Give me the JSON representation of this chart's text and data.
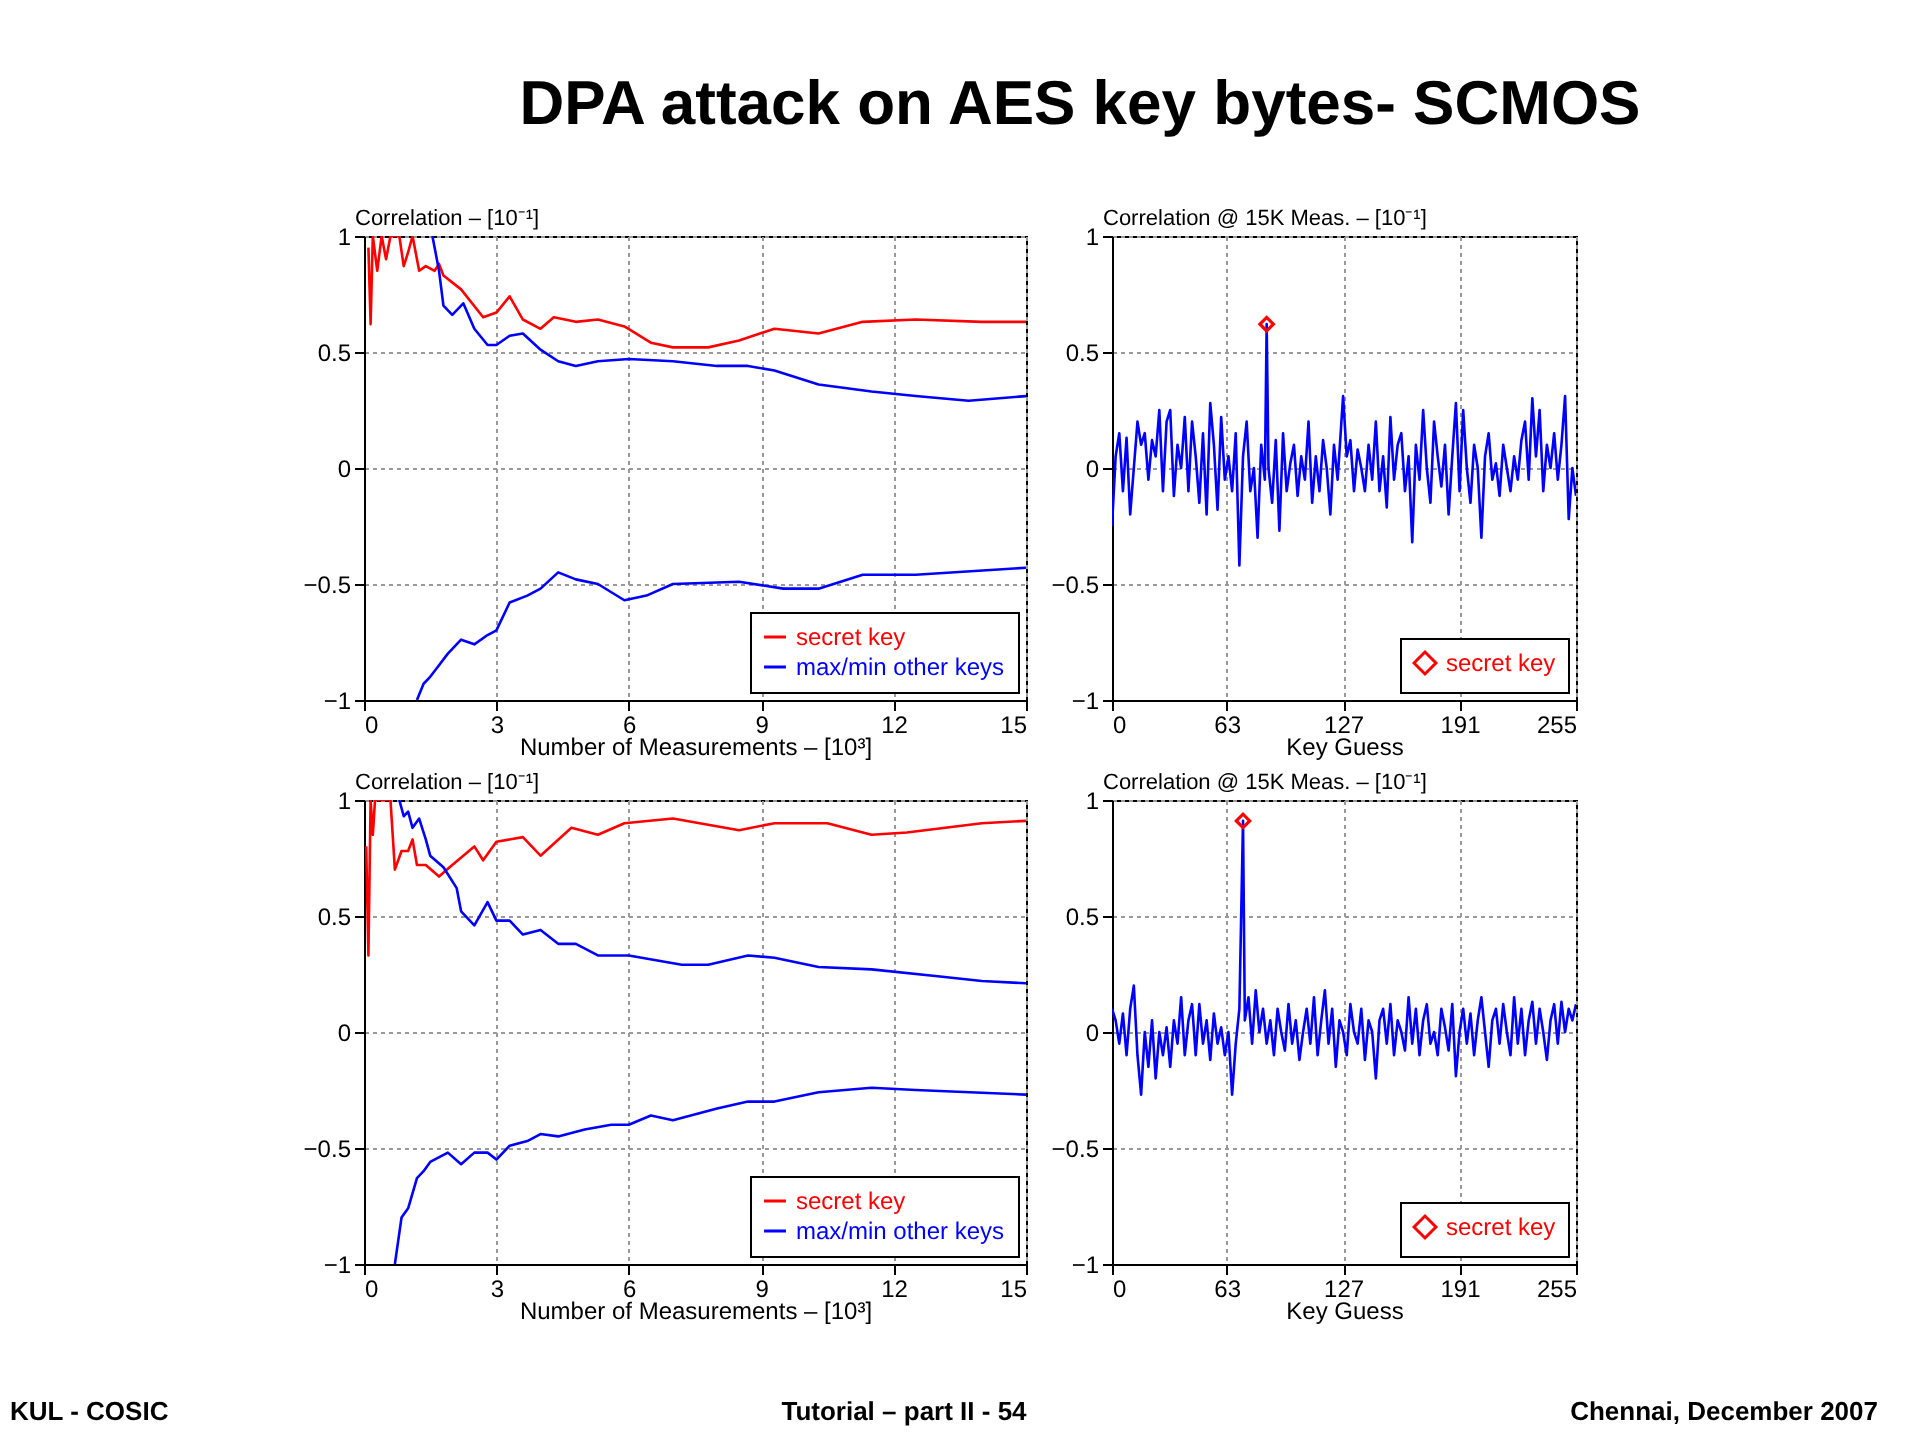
{
  "chart_data": [
    {
      "type": "line",
      "title": "DPA attack on AES key bytes- SCMOS",
      "annotations": [
        "KUL - COSIC",
        "Tutorial – part II - 54",
        "Chennai, December 2007"
      ],
      "xlabel": "Number of Measurements – [10³]",
      "ylabel": "Correlation – [10⁻¹]",
      "xlim": [
        0,
        15
      ],
      "xticks": [
        0,
        3,
        6,
        9,
        12,
        15
      ],
      "ylim": [
        -1,
        1
      ],
      "yticks": [
        -1,
        -0.5,
        0,
        0.5,
        1
      ],
      "grid": true,
      "legend": "bottom right",
      "line_style": "solid",
      "series": [
        {
          "name": "secret key",
          "color": "#ff0000",
          "x": [
            0.1,
            0.15,
            0.2,
            0.3,
            0.4,
            0.5,
            0.6,
            0.8,
            0.9,
            1.0,
            1.1,
            1.25,
            1.4,
            1.6,
            1.7,
            1.8,
            2.2,
            2.7,
            3.0,
            3.3,
            3.6,
            4.0,
            4.3,
            4.8,
            5.3,
            5.9,
            6.5,
            7.0,
            7.8,
            8.5,
            9.3,
            10.3,
            11.3,
            12.5,
            14,
            15
          ],
          "values": [
            0.95,
            0.62,
            1,
            0.85,
            1,
            0.9,
            1,
            1,
            0.87,
            0.93,
            1,
            0.85,
            0.87,
            0.85,
            0.88,
            0.83,
            0.77,
            0.65,
            0.67,
            0.74,
            0.64,
            0.6,
            0.65,
            0.63,
            0.64,
            0.61,
            0.54,
            0.52,
            0.52,
            0.55,
            0.6,
            0.58,
            0.63,
            0.64,
            0.63,
            0.63
          ]
        },
        {
          "name": "max/min other keys",
          "color": "#0000ff",
          "x": [
            1.55,
            1.7,
            1.8,
            2.0,
            2.25,
            2.5,
            2.8,
            3.0,
            3.3,
            3.6,
            4.0,
            4.4,
            4.8,
            5.3,
            6,
            7,
            8,
            8.7,
            9.3,
            10.3,
            11.5,
            12.5,
            13.7,
            15
          ],
          "values": [
            1,
            0.85,
            0.7,
            0.66,
            0.71,
            0.6,
            0.53,
            0.53,
            0.57,
            0.58,
            0.51,
            0.46,
            0.44,
            0.46,
            0.47,
            0.46,
            0.44,
            0.44,
            0.42,
            0.36,
            0.33,
            0.31,
            0.29,
            0.31
          ]
        },
        {
          "color": "#0000ff",
          "x": [
            1.2,
            1.35,
            1.5,
            1.7,
            1.9,
            2.2,
            2.5,
            2.8,
            3.0,
            3.3,
            3.7,
            4.0,
            4.4,
            4.8,
            5.3,
            5.9,
            6.4,
            7.0,
            8.5,
            9.5,
            10.3,
            11.3,
            12.5,
            15
          ],
          "values": [
            -1,
            -0.93,
            -0.9,
            -0.85,
            -0.8,
            -0.74,
            -0.76,
            -0.72,
            -0.7,
            -0.58,
            -0.55,
            -0.52,
            -0.45,
            -0.48,
            -0.5,
            -0.57,
            -0.55,
            -0.5,
            -0.49,
            -0.52,
            -0.52,
            -0.46,
            -0.46,
            -0.43
          ]
        }
      ]
    },
    {
      "type": "line",
      "xlabel": "Key Guess",
      "ylabel": "Correlation @ 15K Meas. – [10⁻¹]",
      "xlim": [
        0,
        255
      ],
      "xticks": [
        0,
        63,
        127,
        191,
        255
      ],
      "ylim": [
        -1,
        1
      ],
      "yticks": [
        -1,
        -0.5,
        0,
        0.5,
        1
      ],
      "grid": true,
      "legend": "bottom right",
      "line_style": "solid",
      "series": [
        {
          "color": "#0000ff",
          "x": [
            0,
            2,
            4,
            6,
            8,
            10,
            12,
            14,
            16,
            18,
            20,
            22,
            24,
            26,
            28,
            30,
            32,
            34,
            36,
            38,
            40,
            42,
            44,
            46,
            48,
            50,
            52,
            54,
            56,
            58,
            60,
            62,
            64,
            66,
            68,
            70,
            72,
            74,
            76,
            78,
            80,
            82,
            84,
            85,
            86,
            88,
            90,
            92,
            94,
            96,
            98,
            100,
            102,
            104,
            106,
            108,
            110,
            112,
            114,
            116,
            118,
            120,
            122,
            124,
            127,
            129,
            131,
            133,
            135,
            137,
            139,
            141,
            143,
            145,
            147,
            149,
            151,
            153,
            155,
            157,
            159,
            161,
            163,
            165,
            167,
            169,
            171,
            173,
            175,
            177,
            179,
            181,
            183,
            185,
            187,
            189,
            191,
            193,
            195,
            197,
            199,
            201,
            203,
            205,
            207,
            209,
            211,
            213,
            215,
            217,
            219,
            221,
            223,
            225,
            227,
            229,
            231,
            233,
            235,
            237,
            239,
            241,
            243,
            245,
            247,
            249,
            251,
            253,
            255
          ],
          "values": [
            -0.25,
            0.05,
            0.15,
            -0.1,
            0.13,
            -0.2,
            0.0,
            0.2,
            0.1,
            0.15,
            -0.05,
            0.12,
            0.05,
            0.25,
            -0.1,
            0.2,
            0.25,
            -0.12,
            0.1,
            0.0,
            0.22,
            -0.1,
            0.2,
            0.05,
            -0.15,
            0.15,
            -0.2,
            0.28,
            0.1,
            -0.18,
            0.22,
            -0.05,
            0.05,
            -0.1,
            0.15,
            -0.42,
            0.05,
            0.2,
            -0.1,
            0.0,
            -0.3,
            0.1,
            -0.05,
            0.62,
            0.0,
            -0.15,
            0.12,
            -0.27,
            0.15,
            -0.1,
            0.02,
            0.1,
            -0.12,
            0.05,
            -0.05,
            0.2,
            -0.15,
            0.05,
            -0.1,
            0.12,
            0.0,
            -0.2,
            0.1,
            -0.05,
            0.31,
            0.05,
            0.12,
            -0.1,
            0.08,
            0.0,
            -0.1,
            0.1,
            -0.05,
            0.2,
            -0.1,
            0.05,
            -0.17,
            0.22,
            -0.05,
            0.1,
            0.15,
            -0.1,
            0.05,
            -0.32,
            0.1,
            -0.05,
            0.25,
            0.0,
            -0.15,
            0.2,
            0.05,
            -0.08,
            0.1,
            -0.2,
            0.05,
            0.28,
            -0.1,
            0.25,
            0.0,
            -0.15,
            0.1,
            0.0,
            -0.3,
            0.05,
            0.15,
            -0.05,
            0.02,
            -0.12,
            0.1,
            0.0,
            -0.1,
            0.05,
            -0.05,
            0.12,
            0.2,
            -0.05,
            0.3,
            0.05,
            0.25,
            -0.1,
            0.1,
            0.0,
            0.15,
            -0.05,
            0.1,
            0.31,
            -0.22,
            0.0,
            -0.12
          ]
        },
        {
          "type": "scatter",
          "name": "secret key",
          "color": "#ff0000",
          "marker": "diamond",
          "x": [
            85
          ],
          "values": [
            0.62
          ]
        }
      ]
    },
    {
      "type": "line",
      "xlabel": "Number of Measurements – [10³]",
      "ylabel": "Correlation – [10⁻¹]",
      "xlim": [
        0,
        15
      ],
      "xticks": [
        0,
        3,
        6,
        9,
        12,
        15
      ],
      "ylim": [
        -1,
        1
      ],
      "yticks": [
        -1,
        -0.5,
        0,
        0.5,
        1
      ],
      "grid": true,
      "legend": "bottom right",
      "line_style": "solid",
      "series": [
        {
          "name": "secret key",
          "color": "#ff0000",
          "x": [
            0.05,
            0.1,
            0.15,
            0.2,
            0.25,
            0.6,
            0.7,
            0.85,
            1.0,
            1.1,
            1.2,
            1.4,
            1.7,
            2.0,
            2.5,
            2.7,
            3.0,
            3.6,
            4.0,
            4.7,
            5.3,
            5.9,
            7.0,
            8.5,
            9.3,
            10.5,
            11.5,
            12.3,
            14,
            15
          ],
          "values": [
            0.8,
            0.33,
            1,
            0.85,
            1,
            1,
            0.7,
            0.78,
            0.78,
            0.83,
            0.72,
            0.72,
            0.67,
            0.72,
            0.8,
            0.74,
            0.82,
            0.84,
            0.76,
            0.88,
            0.85,
            0.9,
            0.92,
            0.87,
            0.9,
            0.9,
            0.85,
            0.86,
            0.9,
            0.91
          ]
        },
        {
          "name": "max/min other keys",
          "color": "#0000ff",
          "x": [
            0.8,
            0.9,
            1.0,
            1.1,
            1.25,
            1.4,
            1.5,
            1.8,
            2.1,
            2.2,
            2.5,
            2.8,
            3.0,
            3.3,
            3.6,
            4.0,
            4.4,
            4.8,
            5.3,
            6,
            7.2,
            7.8,
            8.7,
            9.3,
            10.3,
            11.5,
            13,
            14,
            15
          ],
          "values": [
            1,
            0.93,
            0.95,
            0.88,
            0.92,
            0.83,
            0.76,
            0.71,
            0.62,
            0.52,
            0.46,
            0.56,
            0.48,
            0.48,
            0.42,
            0.44,
            0.38,
            0.38,
            0.33,
            0.33,
            0.29,
            0.29,
            0.33,
            0.32,
            0.28,
            0.27,
            0.24,
            0.22,
            0.21
          ]
        },
        {
          "color": "#0000ff",
          "x": [
            0.7,
            0.85,
            1.0,
            1.2,
            1.35,
            1.5,
            1.9,
            2.2,
            2.5,
            2.8,
            3.0,
            3.3,
            3.7,
            4.0,
            4.4,
            5.0,
            5.6,
            6.0,
            6.5,
            7.0,
            8.0,
            8.7,
            9.3,
            10.3,
            11.5,
            12.5,
            15
          ],
          "values": [
            -1,
            -0.8,
            -0.76,
            -0.63,
            -0.6,
            -0.56,
            -0.52,
            -0.57,
            -0.52,
            -0.52,
            -0.55,
            -0.49,
            -0.47,
            -0.44,
            -0.45,
            -0.42,
            -0.4,
            -0.4,
            -0.36,
            -0.38,
            -0.33,
            -0.3,
            -0.3,
            -0.26,
            -0.24,
            -0.25,
            -0.27
          ]
        }
      ]
    },
    {
      "type": "line",
      "xlabel": "Key Guess",
      "ylabel": "Correlation @ 15K Meas. – [10⁻¹]",
      "xlim": [
        0,
        255
      ],
      "xticks": [
        0,
        63,
        127,
        191,
        255
      ],
      "ylim": [
        -1,
        1
      ],
      "yticks": [
        -1,
        -0.5,
        0,
        0.5,
        1
      ],
      "grid": true,
      "legend": "bottom right",
      "line_style": "solid",
      "series": [
        {
          "color": "#0000ff",
          "x": [
            0,
            2,
            4,
            6,
            8,
            10,
            12,
            14,
            16,
            18,
            20,
            22,
            24,
            26,
            28,
            30,
            32,
            34,
            36,
            38,
            40,
            42,
            44,
            46,
            48,
            50,
            52,
            54,
            56,
            58,
            60,
            62,
            64,
            66,
            68,
            70,
            72,
            73,
            75,
            77,
            79,
            81,
            83,
            85,
            87,
            89,
            91,
            93,
            95,
            97,
            99,
            101,
            103,
            105,
            107,
            109,
            111,
            113,
            115,
            117,
            119,
            121,
            123,
            125,
            127,
            129,
            131,
            133,
            135,
            137,
            139,
            141,
            143,
            145,
            147,
            149,
            151,
            153,
            155,
            157,
            159,
            161,
            163,
            165,
            167,
            169,
            171,
            173,
            175,
            177,
            179,
            181,
            183,
            185,
            187,
            189,
            191,
            193,
            195,
            197,
            199,
            201,
            203,
            205,
            207,
            209,
            211,
            213,
            215,
            217,
            219,
            221,
            223,
            225,
            227,
            229,
            231,
            233,
            235,
            237,
            239,
            241,
            243,
            245,
            247,
            249,
            251,
            253,
            255
          ],
          "values": [
            0.1,
            0.05,
            -0.05,
            0.08,
            -0.1,
            0.1,
            0.2,
            -0.1,
            -0.27,
            0.0,
            -0.15,
            0.05,
            -0.2,
            0.0,
            -0.1,
            0.02,
            -0.15,
            0.05,
            -0.05,
            0.15,
            -0.1,
            0.05,
            0.12,
            -0.1,
            0.12,
            -0.05,
            0.05,
            -0.12,
            0.08,
            -0.05,
            0.02,
            -0.1,
            0.0,
            -0.27,
            -0.05,
            0.1,
            0.91,
            0.05,
            0.15,
            -0.05,
            0.18,
            0.0,
            0.1,
            -0.05,
            0.05,
            -0.1,
            0.1,
            0.0,
            -0.08,
            0.12,
            -0.05,
            0.05,
            -0.12,
            0.0,
            0.1,
            -0.05,
            0.15,
            -0.1,
            0.05,
            0.18,
            -0.05,
            0.1,
            -0.15,
            0.05,
            0.0,
            -0.1,
            0.12,
            0.0,
            -0.05,
            0.1,
            -0.12,
            0.05,
            0.0,
            -0.2,
            0.05,
            0.1,
            -0.05,
            0.12,
            -0.1,
            0.05,
            0.0,
            -0.08,
            0.15,
            -0.05,
            0.1,
            -0.1,
            0.05,
            0.12,
            -0.05,
            0.0,
            -0.1,
            0.1,
            0.02,
            -0.08,
            0.12,
            -0.19,
            0.0,
            0.1,
            -0.05,
            0.08,
            -0.1,
            0.05,
            0.15,
            0.0,
            -0.15,
            0.05,
            0.1,
            -0.05,
            0.12,
            0.0,
            -0.1,
            0.15,
            -0.05,
            0.1,
            -0.1,
            0.05,
            0.13,
            -0.05,
            0.1,
            0.0,
            -0.12,
            0.05,
            0.12,
            -0.05,
            0.13,
            0.0,
            0.1,
            0.05,
            0.12
          ]
        },
        {
          "type": "scatter",
          "name": "secret key",
          "color": "#ff0000",
          "marker": "diamond",
          "x": [
            72
          ],
          "values": [
            0.91
          ]
        }
      ]
    }
  ]
}
